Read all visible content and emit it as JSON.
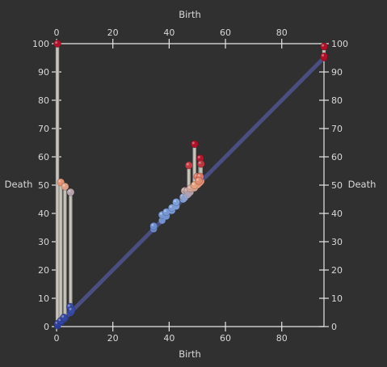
{
  "chart_data": {
    "type": "scatter",
    "title": "",
    "xlabel": "Birth",
    "ylabel": "Death",
    "xlim": [
      0,
      95
    ],
    "ylim": [
      0,
      100
    ],
    "x_ticks": [
      0,
      20,
      40,
      60,
      80
    ],
    "y_ticks": [
      0,
      10,
      20,
      30,
      40,
      50,
      60,
      70,
      80,
      90,
      100
    ],
    "grid": false,
    "legend": "none",
    "colors": {
      "background": "#303030",
      "axis": "#e6e6e6",
      "diagonal": "#4a4e80",
      "bar": "#d6d2c8",
      "low": "#2e3f9e",
      "mid_low": "#7fa1d9",
      "mid_high": "#e9a07c",
      "high": "#b0102a"
    },
    "diagonal": [
      [
        0,
        0
      ],
      [
        95,
        95
      ]
    ],
    "pairs": [
      {
        "birth": 0.3,
        "death": 100
      },
      {
        "birth": 1.5,
        "death": 51
      },
      {
        "birth": 3.0,
        "death": 49.5
      },
      {
        "birth": 5.0,
        "death": 47.5
      },
      {
        "birth": 4.8,
        "death": 7.0
      },
      {
        "birth": 5.3,
        "death": 5.8
      },
      {
        "birth": 0.4,
        "death": 1.0
      },
      {
        "birth": 1.5,
        "death": 2.0
      },
      {
        "birth": 2.6,
        "death": 3.2
      },
      {
        "birth": 34.5,
        "death": 35.5
      },
      {
        "birth": 37.5,
        "death": 39.5
      },
      {
        "birth": 39.0,
        "death": 40.5
      },
      {
        "birth": 41.0,
        "death": 42.0
      },
      {
        "birth": 42.5,
        "death": 44.0
      },
      {
        "birth": 45.0,
        "death": 45.8
      },
      {
        "birth": 45.5,
        "death": 48.0
      },
      {
        "birth": 46.5,
        "death": 48.0
      },
      {
        "birth": 47.0,
        "death": 57.0
      },
      {
        "birth": 49.0,
        "death": 64.5
      },
      {
        "birth": 50.0,
        "death": 53.0
      },
      {
        "birth": 51.0,
        "death": 59.5
      },
      {
        "birth": 51.3,
        "death": 57.5
      },
      {
        "birth": 51.0,
        "death": 53.0
      },
      {
        "birth": 47.5,
        "death": 48.8
      },
      {
        "birth": 49.0,
        "death": 50.0
      },
      {
        "birth": 50.5,
        "death": 51.5
      },
      {
        "birth": 95.0,
        "death": 99.0
      },
      {
        "birth": 95.0,
        "death": 95.5
      }
    ]
  }
}
